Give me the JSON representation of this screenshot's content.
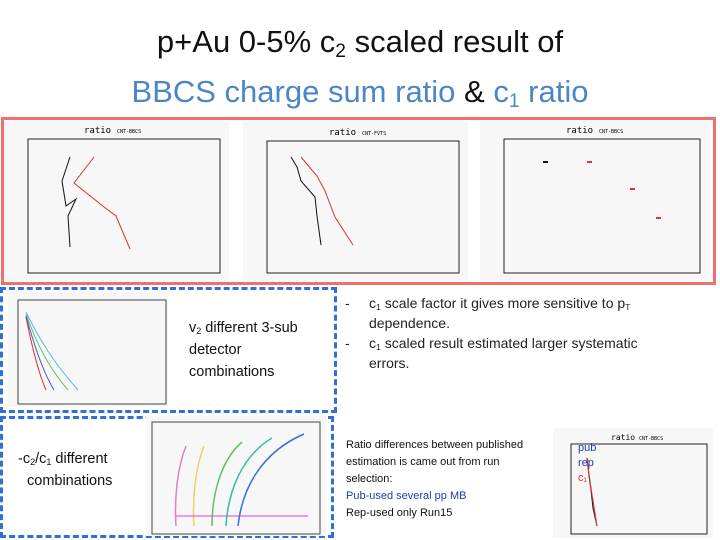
{
  "title": {
    "line1_pre": "p+Au 0-5% c",
    "line1_sub": "2",
    "line1_post": " scaled result of",
    "line2_pre": "BBCS charge sum ratio ",
    "line2_amp": "&",
    "line2_mid": " c",
    "line2_sub": "1",
    "line2_post": " ratio"
  },
  "plots": {
    "p1_header": "ratio",
    "p1_tag": "CNT-BBCS",
    "p2_header": "ratio",
    "p2_tag": "CNT-FVTS",
    "p3_header": "ratio",
    "p3_tag": "CNT-BBCS",
    "p4_header": "ratio",
    "p4_tag": "CNT-BBCS"
  },
  "v2_note": {
    "pre": "v",
    "sub": "2",
    "post": " different 3-sub",
    "line2": "detector",
    "line3": "combinations"
  },
  "c2c1_note": {
    "pre": "-c",
    "sub1": "2",
    "mid": "/c",
    "sub2": "1",
    "post": " different",
    "line2": "combinations"
  },
  "bullets": [
    {
      "pre": "c",
      "sub": "1",
      "mid": " scale factor it gives more sensitive to p",
      "sub2": "T",
      "line2": "dependence."
    },
    {
      "pre": "c",
      "sub": "1",
      "mid": " scaled result estimated larger systematic",
      "line2": "errors."
    }
  ],
  "ratio_note": {
    "line1": "Ratio differences between published",
    "line2": "estimation is came out from run",
    "line3": "selection:",
    "line4": "Pub-used several pp MB",
    "line5": "Rep-used only Run15"
  },
  "legend_small": [
    "pub",
    "rep",
    "c₁"
  ],
  "colors": {
    "accent_blue": "#4a86c8",
    "red_box": "#f07070",
    "blue_dash": "#2f6fd6",
    "pub_blue": "#1a3fb0",
    "red_series": "#e03030"
  }
}
